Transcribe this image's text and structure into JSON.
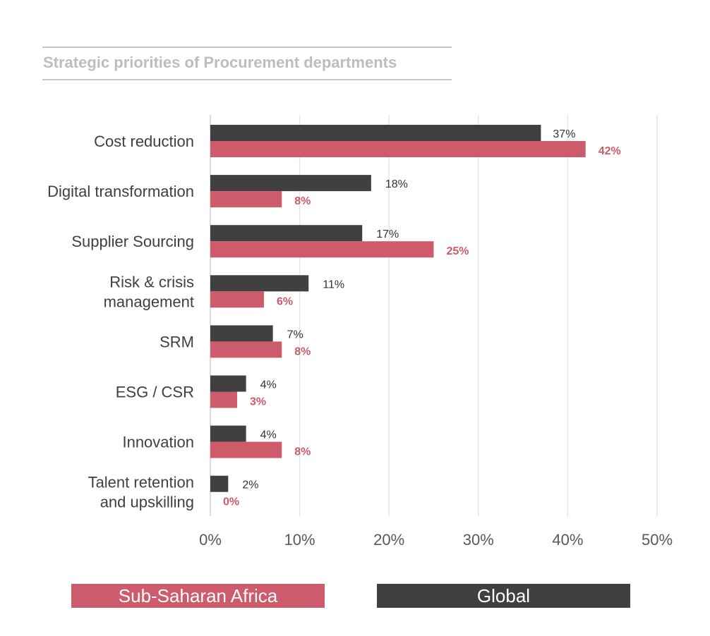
{
  "chart_data": {
    "type": "bar",
    "orientation": "horizontal",
    "title": "Strategic priorities of Procurement departments",
    "categories": [
      "Cost reduction",
      "Digital transformation",
      "Supplier Sourcing",
      "Risk & crisis management",
      "SRM",
      "ESG / CSR",
      "Innovation",
      "Talent retention and upskilling"
    ],
    "category_lines": [
      [
        "Cost reduction"
      ],
      [
        "Digital transformation"
      ],
      [
        "Supplier Sourcing"
      ],
      [
        "Risk & crisis",
        "management"
      ],
      [
        "SRM"
      ],
      [
        "ESG / CSR"
      ],
      [
        "Innovation"
      ],
      [
        "Talent retention",
        "and upskilling"
      ]
    ],
    "series": [
      {
        "name": "Global",
        "values": [
          37,
          18,
          17,
          11,
          7,
          4,
          4,
          2
        ],
        "color": "#404040"
      },
      {
        "name": "Sub-Saharan Africa",
        "values": [
          42,
          8,
          25,
          6,
          8,
          3,
          8,
          0
        ],
        "color": "#cd5b6b"
      }
    ],
    "xlim": [
      0,
      50
    ],
    "x_ticks": [
      0,
      10,
      20,
      30,
      40,
      50
    ],
    "x_tick_labels": [
      "0%",
      "10%",
      "20%",
      "30%",
      "40%",
      "50%"
    ],
    "value_suffix": "%",
    "grid": "vertical",
    "legend_position": "bottom",
    "legend": [
      {
        "label": "Sub-Saharan Africa",
        "color": "#cd5b6b"
      },
      {
        "label": "Global",
        "color": "#404040"
      }
    ]
  }
}
